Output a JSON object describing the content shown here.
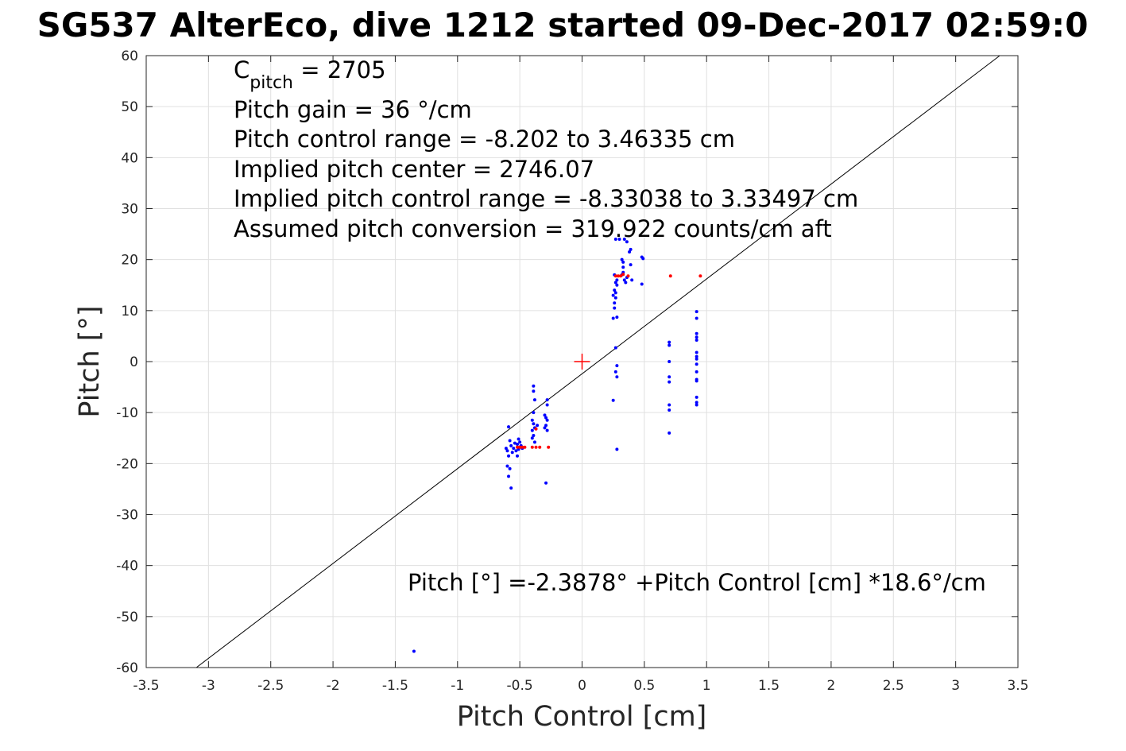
{
  "chart_data": {
    "type": "scatter",
    "title": "SG537 AlterEco, dive 1212 started 09-Dec-2017 02:59:0",
    "xlabel": "Pitch Control [cm]",
    "ylabel": "Pitch [°]",
    "xlim": [
      -3.5,
      3.5
    ],
    "ylim": [
      -60,
      60
    ],
    "xticks": [
      -3.5,
      -3,
      -2.5,
      -2,
      -1.5,
      -1,
      -0.5,
      0,
      0.5,
      1,
      1.5,
      2,
      2.5,
      3,
      3.5
    ],
    "yticks": [
      -60,
      -50,
      -40,
      -30,
      -20,
      -10,
      0,
      10,
      20,
      30,
      40,
      50,
      60
    ],
    "xtick_labels": [
      "-3.5",
      "-3",
      "-2.5",
      "-2",
      "-1.5",
      "-1",
      "-0.5",
      "0",
      "0.5",
      "1",
      "1.5",
      "2",
      "2.5",
      "3",
      "3.5"
    ],
    "ytick_labels": [
      "-60",
      "-50",
      "-40",
      "-30",
      "-20",
      "-10",
      "0",
      "10",
      "20",
      "30",
      "40",
      "50",
      "60"
    ],
    "grid": true,
    "annotations": {
      "c_pitch_symbol": "C",
      "c_pitch_subscript": "pitch",
      "c_pitch_value": " = 2705",
      "lines": [
        "Pitch gain = 36 °/cm",
        "Pitch control range = -8.202 to 3.46335 cm",
        "Implied pitch center = 2746.07",
        "Implied pitch control range = -8.33038 to 3.33497 cm",
        "Assumed pitch conversion = 319.922 counts/cm aft"
      ],
      "fit_equation": "Pitch [°] =-2.3878° +Pitch Control [cm] *18.6°/cm"
    },
    "fit_line": {
      "intercept": -2.3878,
      "slope": 18.6
    },
    "center_marker": {
      "x": 0,
      "y": 0,
      "color": "#ff0000"
    },
    "colors": {
      "observed": "#0000ff",
      "highlighted": "#ff0000",
      "fit_line": "#000000",
      "grid": "#e0e0e0",
      "axes": "#262626"
    },
    "series": [
      {
        "color": "#0000ff",
        "points": [
          [
            -0.59,
            -12.8
          ],
          [
            -0.61,
            -17.0
          ],
          [
            -0.6,
            -17.5
          ],
          [
            -0.58,
            -15.5
          ],
          [
            -0.57,
            -16.5
          ],
          [
            -0.56,
            -17.8
          ],
          [
            -0.59,
            -18.5
          ],
          [
            -0.6,
            -20.5
          ],
          [
            -0.58,
            -21.0
          ],
          [
            -0.59,
            -22.5
          ],
          [
            -0.57,
            -24.8
          ],
          [
            -0.55,
            -17.0
          ],
          [
            -0.54,
            -16.0
          ],
          [
            -0.53,
            -17.5
          ],
          [
            -0.52,
            -16.2
          ],
          [
            -0.51,
            -15.2
          ],
          [
            -0.5,
            -16.8
          ],
          [
            -0.52,
            -18.5
          ],
          [
            -0.51,
            -17.2
          ],
          [
            -0.5,
            -15.8
          ],
          [
            -0.49,
            -16.5
          ],
          [
            -0.48,
            -17.0
          ],
          [
            -0.39,
            -4.8
          ],
          [
            -0.39,
            -5.8
          ],
          [
            -0.38,
            -7.5
          ],
          [
            -0.39,
            -10.0
          ],
          [
            -0.4,
            -11.5
          ],
          [
            -0.39,
            -12.2
          ],
          [
            -0.38,
            -13.0
          ],
          [
            -0.4,
            -13.5
          ],
          [
            -0.39,
            -14.5
          ],
          [
            -0.4,
            -15.0
          ],
          [
            -0.38,
            -15.8
          ],
          [
            -0.36,
            -12.5
          ],
          [
            -0.3,
            -10.5
          ],
          [
            -0.29,
            -11.0
          ],
          [
            -0.28,
            -11.5
          ],
          [
            -0.29,
            -12.5
          ],
          [
            -0.3,
            -13.0
          ],
          [
            -0.28,
            -13.5
          ],
          [
            -0.28,
            -7.5
          ],
          [
            -0.28,
            -8.5
          ],
          [
            -0.29,
            -23.8
          ],
          [
            0.25,
            8.5
          ],
          [
            0.26,
            10.5
          ],
          [
            0.26,
            11.5
          ],
          [
            0.27,
            12.5
          ],
          [
            0.25,
            13.0
          ],
          [
            0.27,
            13.5
          ],
          [
            0.26,
            14.0
          ],
          [
            0.28,
            15.0
          ],
          [
            0.27,
            15.5
          ],
          [
            0.28,
            16.0
          ],
          [
            0.26,
            17.0
          ],
          [
            0.28,
            8.7
          ],
          [
            0.27,
            24.0
          ],
          [
            0.3,
            24.0
          ],
          [
            0.32,
            17.0
          ],
          [
            0.33,
            17.5
          ],
          [
            0.33,
            18.5
          ],
          [
            0.34,
            16.0
          ],
          [
            0.33,
            19.5
          ],
          [
            0.32,
            20.0
          ],
          [
            0.35,
            15.5
          ],
          [
            0.36,
            23.5
          ],
          [
            0.34,
            24.0
          ],
          [
            0.36,
            16.5
          ],
          [
            0.38,
            21.5
          ],
          [
            0.39,
            22.0
          ],
          [
            0.39,
            19.0
          ],
          [
            0.4,
            16.0
          ],
          [
            0.48,
            20.5
          ],
          [
            0.49,
            20.2
          ],
          [
            0.48,
            15.2
          ],
          [
            0.27,
            2.7
          ],
          [
            0.28,
            -0.8
          ],
          [
            0.27,
            -2.0
          ],
          [
            0.28,
            -3.0
          ],
          [
            0.25,
            -7.6
          ],
          [
            0.28,
            -17.2
          ],
          [
            0.7,
            3.8
          ],
          [
            0.7,
            3.2
          ],
          [
            0.7,
            0.0
          ],
          [
            0.7,
            -3.0
          ],
          [
            0.7,
            -4.0
          ],
          [
            0.7,
            -8.5
          ],
          [
            0.7,
            -9.5
          ],
          [
            0.7,
            -14.0
          ],
          [
            0.92,
            9.8
          ],
          [
            0.92,
            8.5
          ],
          [
            0.92,
            5.5
          ],
          [
            0.92,
            4.8
          ],
          [
            0.92,
            4.2
          ],
          [
            0.92,
            1.8
          ],
          [
            0.92,
            1.0
          ],
          [
            0.92,
            0.5
          ],
          [
            0.92,
            -0.5
          ],
          [
            0.92,
            -2.0
          ],
          [
            0.92,
            -3.5
          ],
          [
            0.92,
            -3.8
          ],
          [
            0.92,
            -7.0
          ],
          [
            0.92,
            -8.0
          ],
          [
            0.92,
            -8.5
          ],
          [
            -1.35,
            -56.8
          ]
        ]
      },
      {
        "color": "#ff0000",
        "points": [
          [
            -0.52,
            -16.8
          ],
          [
            -0.5,
            -16.8
          ],
          [
            -0.48,
            -16.8
          ],
          [
            -0.46,
            -16.8
          ],
          [
            -0.4,
            -16.8
          ],
          [
            -0.37,
            -16.8
          ],
          [
            -0.34,
            -16.8
          ],
          [
            -0.27,
            -16.8
          ],
          [
            -0.37,
            -13.2
          ],
          [
            0.27,
            16.8
          ],
          [
            0.29,
            16.8
          ],
          [
            0.31,
            16.8
          ],
          [
            0.33,
            17.1
          ],
          [
            0.37,
            16.8
          ],
          [
            0.71,
            16.8
          ],
          [
            0.95,
            16.8
          ]
        ]
      }
    ]
  }
}
